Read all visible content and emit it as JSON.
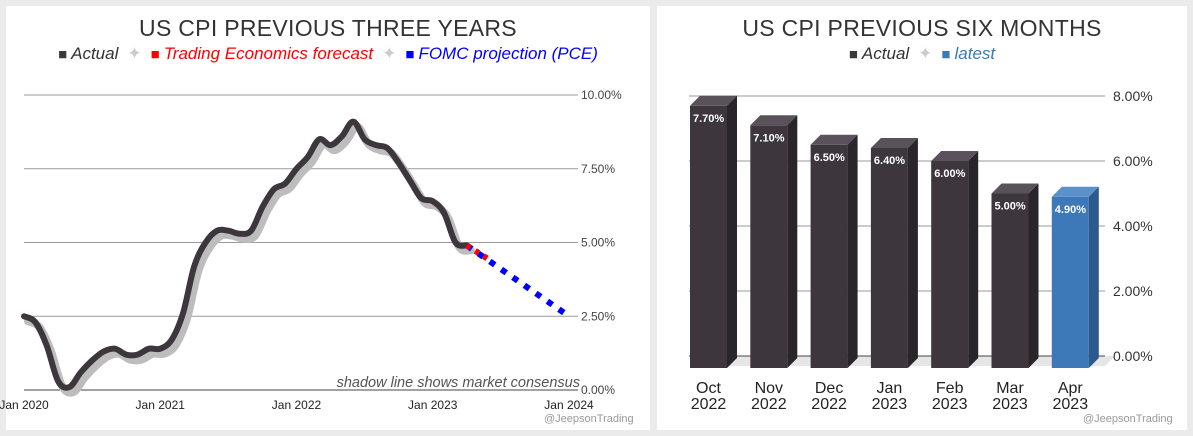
{
  "left_chart": {
    "title": "US CPI PREVIOUS THREE YEARS",
    "legend": [
      {
        "label": "Actual",
        "color": "#3d363d"
      },
      {
        "label": "Trading Economics forecast",
        "color": "#ff0000"
      },
      {
        "label": "FOMC projection (PCE)",
        "color": "#0000ff"
      }
    ],
    "legend_separator": "✦",
    "annotation": "shadow line shows market consensus",
    "watermark": "@JeepsonTrading"
  },
  "right_chart": {
    "title": "US CPI PREVIOUS SIX MONTHS",
    "legend": [
      {
        "label": "Actual",
        "color": "#3d363d"
      },
      {
        "label": "latest",
        "color": "#3d78b8"
      }
    ],
    "legend_separator": "✦",
    "watermark": "@JeepsonTrading"
  },
  "chart_data": [
    {
      "type": "line",
      "title": "US CPI PREVIOUS THREE YEARS",
      "xlabel": "",
      "ylabel": "",
      "x_ticks": [
        "Jan 2020",
        "Jan 2021",
        "Jan 2022",
        "Jan 2023",
        "Jan 2024"
      ],
      "xlim": [
        2020.0,
        2024.0
      ],
      "y_ticks": [
        "0.00%",
        "2.50%",
        "5.00%",
        "7.50%",
        "10.00%"
      ],
      "ylim": [
        0,
        10
      ],
      "series": [
        {
          "name": "Actual",
          "color": "#3d363d",
          "x": [
            2020.0,
            2020.083,
            2020.167,
            2020.25,
            2020.333,
            2020.417,
            2020.5,
            2020.583,
            2020.667,
            2020.75,
            2020.833,
            2020.917,
            2021.0,
            2021.083,
            2021.167,
            2021.25,
            2021.333,
            2021.417,
            2021.5,
            2021.583,
            2021.667,
            2021.75,
            2021.833,
            2021.917,
            2022.0,
            2022.083,
            2022.167,
            2022.25,
            2022.333,
            2022.417,
            2022.5,
            2022.583,
            2022.667,
            2022.75,
            2022.833,
            2022.917,
            2023.0,
            2023.083,
            2023.167,
            2023.25
          ],
          "values": [
            2.5,
            2.3,
            1.5,
            0.3,
            0.1,
            0.6,
            1.0,
            1.3,
            1.4,
            1.2,
            1.2,
            1.4,
            1.4,
            1.7,
            2.6,
            4.2,
            5.0,
            5.4,
            5.4,
            5.3,
            5.4,
            6.2,
            6.8,
            7.0,
            7.5,
            7.9,
            8.5,
            8.3,
            8.6,
            9.1,
            8.5,
            8.3,
            8.2,
            7.7,
            7.1,
            6.5,
            6.4,
            6.0,
            5.0,
            4.9
          ]
        },
        {
          "name": "Trading Economics forecast",
          "color": "#ff0000",
          "x": [
            2023.25,
            2023.42
          ],
          "values": [
            4.9,
            4.4
          ]
        },
        {
          "name": "FOMC projection (PCE)",
          "color": "#0000ff",
          "x": [
            2023.25,
            2024.0
          ],
          "values": [
            4.9,
            2.5
          ]
        }
      ]
    },
    {
      "type": "bar",
      "title": "US CPI PREVIOUS SIX MONTHS",
      "xlabel": "",
      "ylabel": "",
      "categories": [
        "Oct 2022",
        "Nov 2022",
        "Dec 2022",
        "Jan 2023",
        "Feb 2023",
        "Mar 2023",
        "Apr 2023"
      ],
      "values": [
        7.7,
        7.1,
        6.5,
        6.4,
        6.0,
        5.0,
        4.9
      ],
      "labels": [
        "7.70%",
        "7.10%",
        "6.50%",
        "6.40%",
        "6.00%",
        "5.00%",
        "4.90%"
      ],
      "series_of_bar": [
        "Actual",
        "Actual",
        "Actual",
        "Actual",
        "Actual",
        "Actual",
        "latest"
      ],
      "y_ticks": [
        "0.00%",
        "2.00%",
        "4.00%",
        "6.00%",
        "8.00%"
      ],
      "ylim": [
        0,
        8
      ]
    }
  ]
}
